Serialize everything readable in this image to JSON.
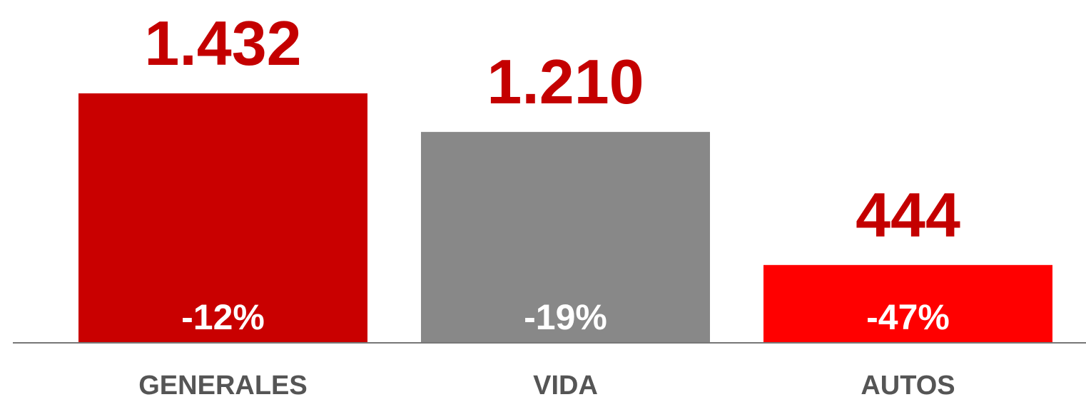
{
  "chart_data": {
    "type": "bar",
    "categories": [
      "GENERALES",
      "VIDA",
      "AUTOS"
    ],
    "values": [
      1432,
      1210,
      444
    ],
    "value_labels": [
      "1.432",
      "1.210",
      "444"
    ],
    "change_labels": [
      "-12%",
      "-19%",
      "-47%"
    ],
    "colors": [
      "#c90000",
      "#888888",
      "#ff0000"
    ]
  }
}
